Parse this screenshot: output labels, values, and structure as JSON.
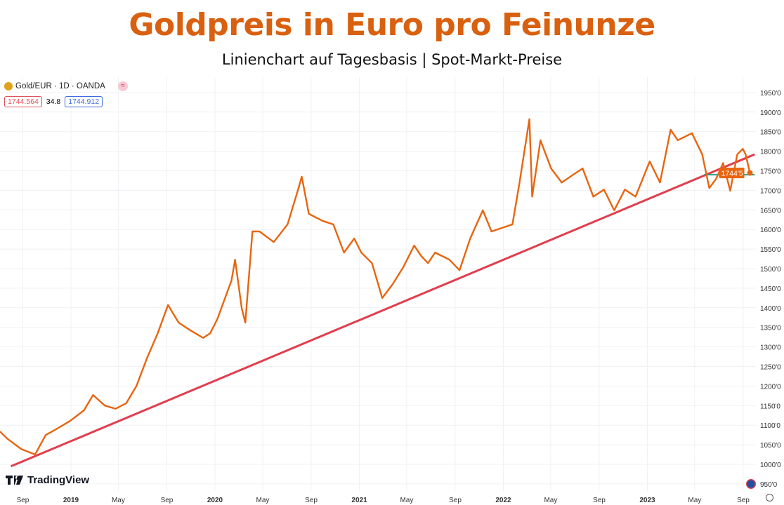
{
  "header": {
    "title": "Goldpreis in Euro pro Feinunze",
    "subtitle": "Linienchart auf Tagesbasis | Spot-Markt-Preise"
  },
  "legend": {
    "symbol": "Gold/EUR · 1D · OANDA",
    "bid": "1744.564",
    "spread": "34.8",
    "ask": "1744.912"
  },
  "branding": {
    "logo": "TradingView"
  },
  "colors": {
    "price_line": "#e8650f",
    "trend_line": "#e23d4d",
    "support_line": "#1f9e8a",
    "last_price_bg": "#e8650f"
  },
  "chart_data": {
    "type": "line",
    "title": "Goldpreis in Euro pro Feinunze",
    "ylim": [
      950,
      1950
    ],
    "y_ticks": [
      "950'0",
      "1000'0",
      "1050'0",
      "1100'0",
      "1150'0",
      "1200'0",
      "1250'0",
      "1300'0",
      "1350'0",
      "1400'0",
      "1450'0",
      "1500'0",
      "1550'0",
      "1600'0",
      "1650'0",
      "1700'0",
      "1750'0",
      "1800'0",
      "1850'0",
      "1900'0",
      "1950'0"
    ],
    "y_tick_values": [
      950,
      1000,
      1050,
      1100,
      1150,
      1200,
      1250,
      1300,
      1350,
      1400,
      1450,
      1500,
      1550,
      1600,
      1650,
      1700,
      1750,
      1800,
      1850,
      1900,
      1950
    ],
    "x_ticks": [
      {
        "label": "Sep",
        "date": "2018-09-01"
      },
      {
        "label": "2019",
        "date": "2019-01-01"
      },
      {
        "label": "May",
        "date": "2019-05-01"
      },
      {
        "label": "Sep",
        "date": "2019-09-01"
      },
      {
        "label": "2020",
        "date": "2020-01-01"
      },
      {
        "label": "May",
        "date": "2020-05-01"
      },
      {
        "label": "Sep",
        "date": "2020-09-01"
      },
      {
        "label": "2021",
        "date": "2021-01-01"
      },
      {
        "label": "May",
        "date": "2021-05-01"
      },
      {
        "label": "Sep",
        "date": "2021-09-01"
      },
      {
        "label": "2022",
        "date": "2022-01-01"
      },
      {
        "label": "May",
        "date": "2022-05-01"
      },
      {
        "label": "Sep",
        "date": "2022-09-01"
      },
      {
        "label": "2023",
        "date": "2023-01-01"
      },
      {
        "label": "May",
        "date": "2023-05-01"
      },
      {
        "label": "Sep",
        "date": "2023-09-01"
      }
    ],
    "grid": true,
    "last_price_label": "1744'5",
    "series": [
      {
        "x": [
          "2018-07-05",
          "2018-07-23",
          "2018-08-28",
          "2018-10-02",
          "2018-10-29",
          "2018-11-25",
          "2018-12-30",
          "2019-02-03",
          "2019-02-26",
          "2019-03-28",
          "2019-04-24",
          "2019-05-21",
          "2019-06-16",
          "2019-07-13",
          "2019-08-09",
          "2019-09-04",
          "2019-10-01",
          "2019-10-28",
          "2019-12-02",
          "2019-12-20",
          "2020-01-07",
          "2020-02-12",
          "2020-02-21",
          "2020-03-09",
          "2020-03-18",
          "2020-04-05",
          "2020-04-23",
          "2020-05-29",
          "2020-07-03",
          "2020-07-30",
          "2020-08-08",
          "2020-08-26",
          "2020-09-30",
          "2020-10-27",
          "2020-11-23",
          "2020-12-19",
          "2021-01-06",
          "2021-02-02",
          "2021-02-28",
          "2021-03-27",
          "2021-04-23",
          "2021-05-20",
          "2021-06-07",
          "2021-06-24",
          "2021-07-12",
          "2021-08-17",
          "2021-09-12",
          "2021-10-09",
          "2021-11-10",
          "2021-12-02",
          "2021-12-28",
          "2022-01-24",
          "2022-02-11",
          "2022-03-08",
          "2022-03-15",
          "2022-04-05",
          "2022-05-02",
          "2022-05-29",
          "2022-06-24",
          "2022-07-21",
          "2022-08-17",
          "2022-09-13",
          "2022-10-09",
          "2022-11-05",
          "2022-12-02",
          "2023-01-07",
          "2023-02-02",
          "2023-03-01",
          "2023-03-19",
          "2023-04-24",
          "2023-05-20",
          "2023-06-07",
          "2023-06-24",
          "2023-07-12",
          "2023-07-30",
          "2023-08-17",
          "2023-08-31",
          "2023-09-07",
          "2023-09-18"
        ],
        "y": [
          1084,
          1066,
          1039,
          1025,
          1075,
          1090,
          1111,
          1138,
          1177,
          1150,
          1142,
          1156,
          1200,
          1272,
          1335,
          1407,
          1362,
          1344,
          1323,
          1335,
          1371,
          1470,
          1523,
          1398,
          1362,
          1595,
          1595,
          1568,
          1613,
          1703,
          1735,
          1640,
          1622,
          1613,
          1541,
          1577,
          1541,
          1514,
          1425,
          1461,
          1505,
          1559,
          1532,
          1514,
          1541,
          1523,
          1496,
          1577,
          1649,
          1595,
          1604,
          1613,
          1720,
          1882,
          1684,
          1828,
          1756,
          1720,
          1738,
          1756,
          1684,
          1702,
          1649,
          1702,
          1684,
          1774,
          1720,
          1855,
          1828,
          1846,
          1792,
          1706,
          1729,
          1770,
          1699,
          1792,
          1806,
          1792,
          1744.5
        ]
      }
    ],
    "trend_line": {
      "x": [
        "2018-08-02",
        "2023-09-30"
      ],
      "y": [
        995,
        1792
      ]
    },
    "support_line": {
      "x": [
        "2023-05-25",
        "2023-09-30"
      ],
      "y": [
        1740,
        1740
      ]
    }
  }
}
